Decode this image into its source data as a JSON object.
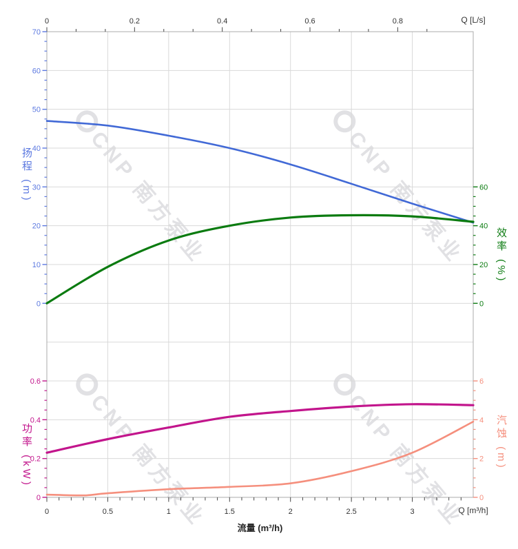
{
  "watermark": {
    "text": "CNP 南方泵业"
  },
  "chart_data": {
    "type": "line",
    "title": "",
    "x_unit": "m³/h",
    "grid": true,
    "legend": "none",
    "axes": {
      "x_bottom": {
        "title": "流量 (m³/h)",
        "unit_label": "Q [m³/h]",
        "min": 0,
        "max": 3.5,
        "ticks": [
          0,
          0.5,
          1,
          1.5,
          2,
          2.5,
          3
        ],
        "minor_step": 0.1,
        "color": "#333333"
      },
      "x_top": {
        "unit_label": "Q [L/s]",
        "min": 0,
        "max": 0.972,
        "ticks": [
          0,
          0.2,
          0.4,
          0.6,
          0.8
        ],
        "minor_step": 0.0667,
        "ls_to_m3h": 3.6,
        "color": "#333333"
      },
      "head": {
        "title": "扬程 (m)",
        "side": "left",
        "min": 0,
        "max": 70,
        "ticks": [
          0,
          10,
          20,
          30,
          40,
          50,
          60,
          70
        ],
        "minor_step": 2.5,
        "color": "#5b78e0"
      },
      "efficiency": {
        "title": "效率 (%)",
        "side": "right",
        "min": 0,
        "max": 60,
        "ticks": [
          0,
          20,
          40,
          60
        ],
        "minor_step": 5,
        "color": "#0b7b10"
      },
      "power": {
        "title": "功率 (kW)",
        "side": "left",
        "min": 0,
        "max": 0.6,
        "ticks": [
          0,
          0.2,
          0.4,
          0.6
        ],
        "minor_step": 0.05,
        "color": "#c2158c"
      },
      "npsh": {
        "title": "汽蚀 (m)",
        "side": "right",
        "min": 0,
        "max": 6,
        "ticks": [
          0,
          2,
          4,
          6
        ],
        "minor_step": 0.5,
        "color": "#f58f7d"
      }
    },
    "series": [
      {
        "name": "扬程",
        "axis": "head",
        "color": "#4169d6",
        "width": 2.6,
        "x": [
          0,
          0.5,
          1,
          1.5,
          2,
          2.5,
          3,
          3.5
        ],
        "values": [
          47,
          45.8,
          43.2,
          40,
          35.8,
          30.8,
          25.7,
          20.8
        ]
      },
      {
        "name": "效率",
        "axis": "efficiency",
        "color": "#0b7b10",
        "width": 3.2,
        "x": [
          0,
          0.5,
          1,
          1.5,
          2,
          2.5,
          3,
          3.5
        ],
        "values": [
          0,
          18.8,
          32.4,
          40,
          44.2,
          45.4,
          44.8,
          42
        ]
      },
      {
        "name": "功率",
        "axis": "power",
        "color": "#c2158c",
        "width": 3.2,
        "x": [
          0,
          0.5,
          1,
          1.5,
          2,
          2.5,
          3,
          3.5
        ],
        "values": [
          0.23,
          0.3,
          0.36,
          0.415,
          0.445,
          0.468,
          0.48,
          0.475
        ]
      },
      {
        "name": "汽蚀",
        "axis": "npsh",
        "color": "#f58f7d",
        "width": 2.6,
        "x": [
          0,
          0.3,
          0.5,
          1,
          1.5,
          2,
          2.5,
          3,
          3.5
        ],
        "values": [
          0.14,
          0.1,
          0.21,
          0.42,
          0.54,
          0.72,
          1.35,
          2.3,
          3.9
        ]
      }
    ]
  }
}
